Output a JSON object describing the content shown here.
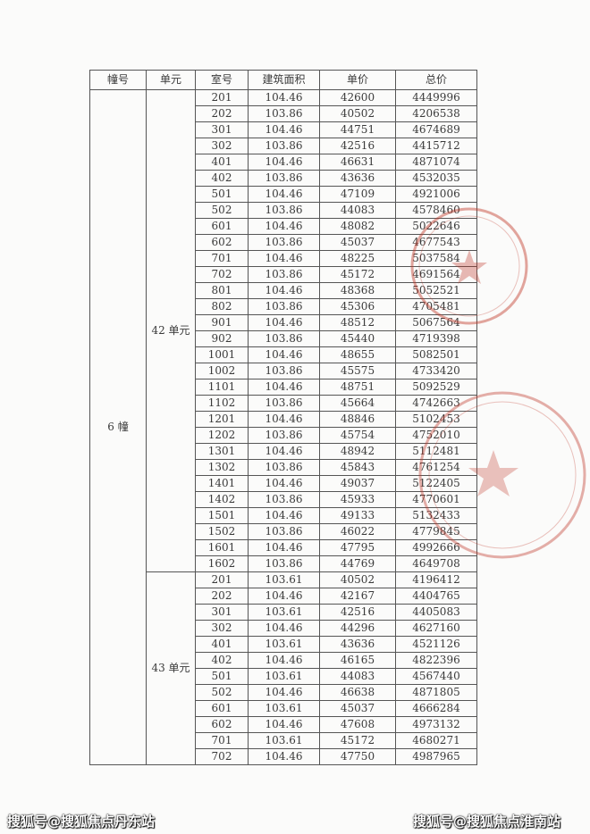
{
  "headers": [
    "幢号",
    "单元",
    "室号",
    "建筑面积",
    "单价",
    "总价"
  ],
  "building": "6 幢",
  "units": [
    {
      "name": "42 单元",
      "rows": [
        [
          "201",
          "104.46",
          "42600",
          "4449996"
        ],
        [
          "202",
          "103.86",
          "40502",
          "4206538"
        ],
        [
          "301",
          "104.46",
          "44751",
          "4674689"
        ],
        [
          "302",
          "103.86",
          "42516",
          "4415712"
        ],
        [
          "401",
          "104.46",
          "46631",
          "4871074"
        ],
        [
          "402",
          "103.86",
          "43636",
          "4532035"
        ],
        [
          "501",
          "104.46",
          "47109",
          "4921006"
        ],
        [
          "502",
          "103.86",
          "44083",
          "4578460"
        ],
        [
          "601",
          "104.46",
          "48082",
          "5022646"
        ],
        [
          "602",
          "103.86",
          "45037",
          "4677543"
        ],
        [
          "701",
          "104.46",
          "48225",
          "5037584"
        ],
        [
          "702",
          "103.86",
          "45172",
          "4691564"
        ],
        [
          "801",
          "104.46",
          "48368",
          "5052521"
        ],
        [
          "802",
          "103.86",
          "45306",
          "4705481"
        ],
        [
          "901",
          "104.46",
          "48512",
          "5067564"
        ],
        [
          "902",
          "103.86",
          "45440",
          "4719398"
        ],
        [
          "1001",
          "104.46",
          "48655",
          "5082501"
        ],
        [
          "1002",
          "103.86",
          "45575",
          "4733420"
        ],
        [
          "1101",
          "104.46",
          "48751",
          "5092529"
        ],
        [
          "1102",
          "103.86",
          "45664",
          "4742663"
        ],
        [
          "1201",
          "104.46",
          "48846",
          "5102453"
        ],
        [
          "1202",
          "103.86",
          "45754",
          "4752010"
        ],
        [
          "1301",
          "104.46",
          "48942",
          "5112481"
        ],
        [
          "1302",
          "103.86",
          "45843",
          "4761254"
        ],
        [
          "1401",
          "104.46",
          "49037",
          "5122405"
        ],
        [
          "1402",
          "103.86",
          "45933",
          "4770601"
        ],
        [
          "1501",
          "104.46",
          "49133",
          "5132433"
        ],
        [
          "1502",
          "103.86",
          "46022",
          "4779845"
        ],
        [
          "1601",
          "104.46",
          "47795",
          "4992666"
        ],
        [
          "1602",
          "103.86",
          "44769",
          "4649708"
        ]
      ]
    },
    {
      "name": "43 单元",
      "rows": [
        [
          "201",
          "103.61",
          "40502",
          "4196412"
        ],
        [
          "202",
          "104.46",
          "42167",
          "4404765"
        ],
        [
          "301",
          "103.61",
          "42516",
          "4405083"
        ],
        [
          "302",
          "104.46",
          "44296",
          "4627160"
        ],
        [
          "401",
          "103.61",
          "43636",
          "4521126"
        ],
        [
          "402",
          "104.46",
          "46165",
          "4822396"
        ],
        [
          "501",
          "103.61",
          "44083",
          "4567440"
        ],
        [
          "502",
          "104.46",
          "46638",
          "4871805"
        ],
        [
          "601",
          "103.61",
          "45037",
          "4666284"
        ],
        [
          "602",
          "104.46",
          "47608",
          "4973132"
        ],
        [
          "701",
          "103.61",
          "45172",
          "4680271"
        ],
        [
          "702",
          "104.46",
          "47750",
          "4987965"
        ]
      ]
    }
  ],
  "stamp_color": "#c0392b",
  "watermark_left": "搜狐号@搜狐焦点丹东站",
  "watermark_right": "搜狐号@搜狐焦点淮南站"
}
